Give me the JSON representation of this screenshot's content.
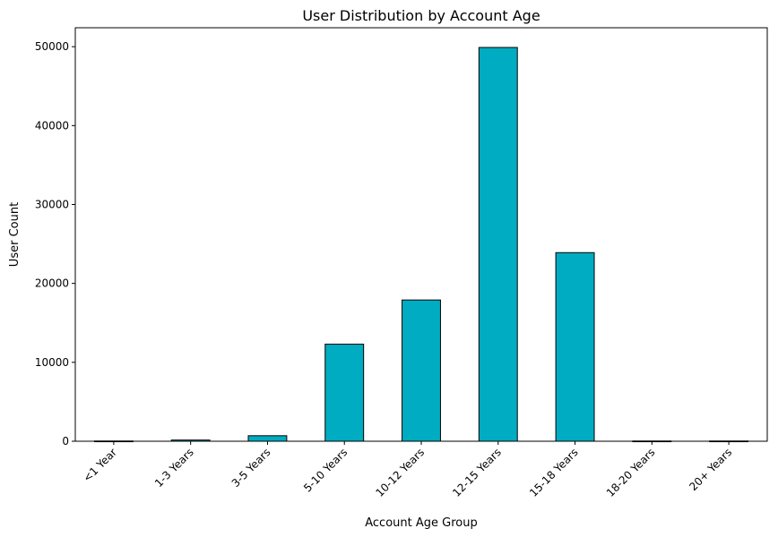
{
  "chart_data": {
    "type": "bar",
    "title": "User Distribution by Account Age",
    "xlabel": "Account Age Group",
    "ylabel": "User Count",
    "categories": [
      "<1 Year",
      "1-3 Years",
      "3-5 Years",
      "5-10 Years",
      "10-12 Years",
      "12-15 Years",
      "15-18 Years",
      "18-20 Years",
      "20+ Years"
    ],
    "values": [
      30,
      150,
      700,
      12300,
      17900,
      49900,
      23900,
      30,
      30
    ],
    "ylim": [
      0,
      52400
    ],
    "yticks": [
      0,
      10000,
      20000,
      30000,
      40000,
      50000
    ],
    "grid": false,
    "bar_color": "#00acc1",
    "edge_color": "#000000"
  }
}
